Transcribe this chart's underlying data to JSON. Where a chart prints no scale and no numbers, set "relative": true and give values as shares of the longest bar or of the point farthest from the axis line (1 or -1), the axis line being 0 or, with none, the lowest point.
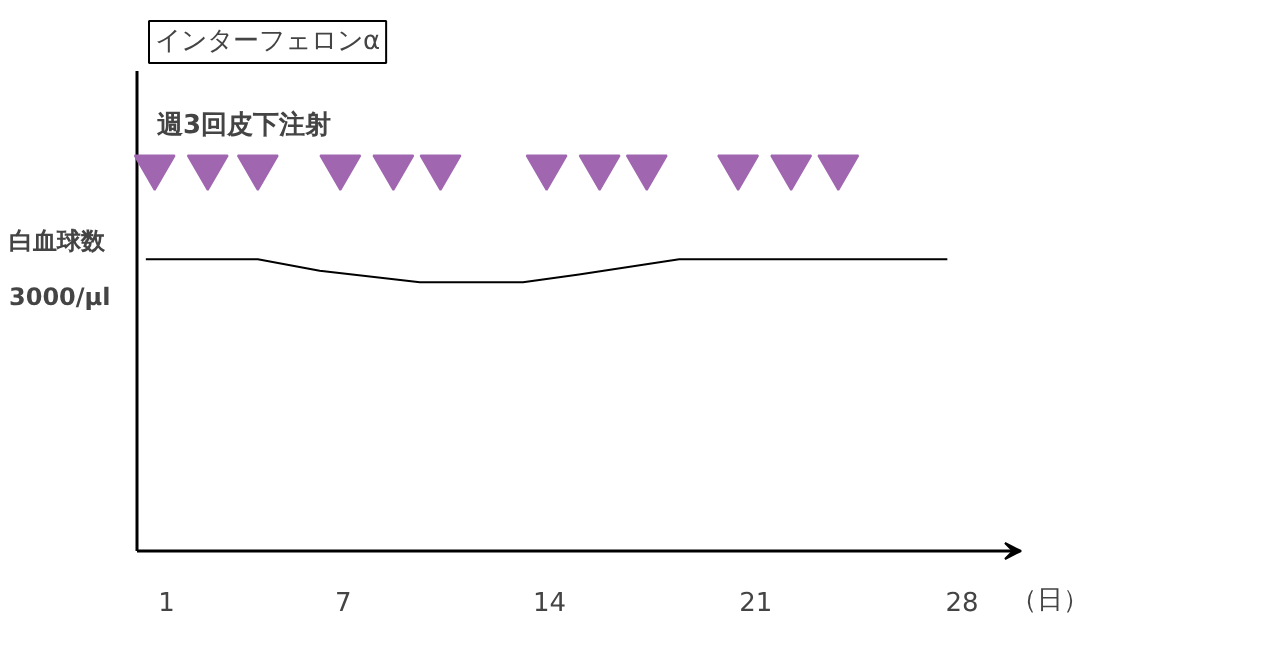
{
  "chart_data": {
    "type": "line",
    "title": "インターフェロンα",
    "xlabel": "（日）",
    "relative": true,
    "xlim": [
      0,
      30
    ],
    "xticks": [
      1,
      7,
      14,
      21,
      28
    ],
    "annotations": [
      "週3回皮下注射"
    ],
    "series": [
      {
        "name": "白血球数\n3000/μl",
        "color": "#000000",
        "x": [
          0.3,
          4.1,
          6.2,
          9.6,
          13.1,
          15.0,
          18.4,
          27.5
        ],
        "values": [
          0.76,
          0.76,
          0.73,
          0.7,
          0.7,
          0.72,
          0.76,
          0.76
        ]
      },
      {
        "type": "scatter",
        "marker": "triangle",
        "color": "#a066b0",
        "x": [
          0.6,
          2.4,
          4.1,
          6.9,
          8.7,
          10.3,
          13.9,
          15.7,
          17.3,
          20.4,
          22.2,
          23.8
        ],
        "values": [
          1,
          1,
          1,
          1,
          1,
          1,
          1,
          1,
          1,
          1,
          1,
          1
        ]
      }
    ],
    "grid": false
  }
}
